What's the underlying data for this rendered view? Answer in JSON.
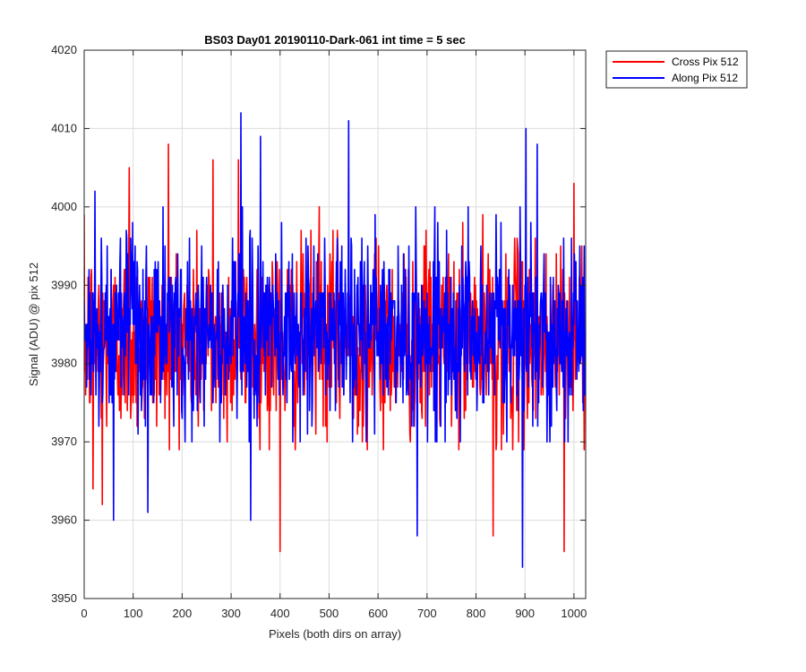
{
  "chart_data": {
    "type": "line",
    "title": "BS03 Day01 20190110-Dark-061 int time = 5 sec",
    "xlabel": "Pixels (both dirs on array)",
    "ylabel": "Signal (ADU) @ pix 512",
    "xlim": [
      0,
      1024
    ],
    "ylim": [
      3950,
      4020
    ],
    "xticks": [
      0,
      100,
      200,
      300,
      400,
      500,
      600,
      700,
      800,
      900,
      1000
    ],
    "yticks": [
      3950,
      3960,
      3970,
      3980,
      3990,
      4000,
      4010,
      4020
    ],
    "grid": true,
    "legend_position": "outside-top-right",
    "series": [
      {
        "name": "Cross Pix 512",
        "color": "#ff0000",
        "mean": 3983,
        "noise_std": 6,
        "n_points": 1024,
        "notable_points": [
          [
            18,
            3964
          ],
          [
            37,
            3962
          ],
          [
            92,
            4005
          ],
          [
            172,
            4008
          ],
          [
            263,
            4006
          ],
          [
            315,
            4006
          ],
          [
            400,
            3956
          ],
          [
            480,
            4000
          ],
          [
            835,
            3958
          ],
          [
            980,
            3956
          ],
          [
            1000,
            4003
          ]
        ]
      },
      {
        "name": "Along Pix 512",
        "color": "#0000ff",
        "mean": 3984,
        "noise_std": 6,
        "n_points": 1024,
        "notable_points": [
          [
            22,
            4002
          ],
          [
            60,
            3960
          ],
          [
            130,
            3961
          ],
          [
            320,
            4012
          ],
          [
            340,
            3960
          ],
          [
            360,
            4009
          ],
          [
            540,
            4011
          ],
          [
            680,
            3958
          ],
          [
            895,
            3954
          ],
          [
            902,
            4010
          ],
          [
            925,
            4008
          ]
        ]
      }
    ]
  }
}
